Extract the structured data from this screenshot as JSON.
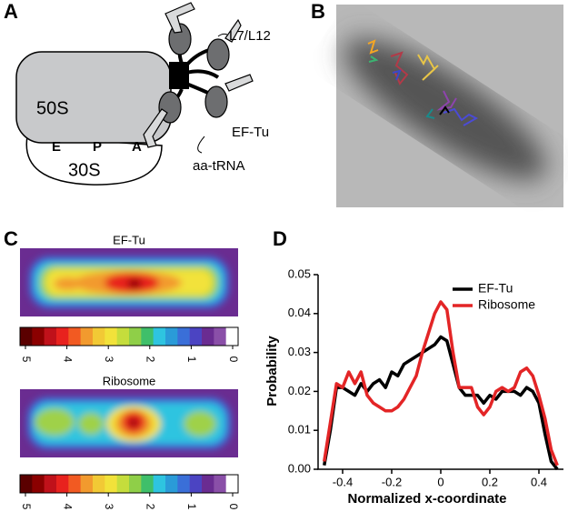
{
  "panels": {
    "a": "A",
    "b": "B",
    "c": "C",
    "d": "D"
  },
  "diagram": {
    "subunit_large": "50S",
    "subunit_small": "30S",
    "sites": [
      "E",
      "P",
      "A"
    ],
    "stalk": "L7/L12",
    "factor": "EF-Tu",
    "trna": "aa-tRNA"
  },
  "heatmaps": [
    {
      "title": "EF-Tu",
      "colorbar_ticks": [
        5,
        4,
        3,
        2,
        1,
        0
      ]
    },
    {
      "title": "Ribosome",
      "colorbar_ticks": [
        5,
        4,
        3,
        2,
        1,
        0
      ]
    }
  ],
  "chart_data": {
    "type": "line",
    "xlabel": "Normalized x-coordinate",
    "ylabel": "Probability",
    "x": [
      -0.475,
      -0.45,
      -0.425,
      -0.4,
      -0.375,
      -0.35,
      -0.325,
      -0.3,
      -0.275,
      -0.25,
      -0.225,
      -0.2,
      -0.175,
      -0.15,
      -0.125,
      -0.1,
      -0.075,
      -0.05,
      -0.025,
      0,
      0.025,
      0.05,
      0.075,
      0.1,
      0.125,
      0.15,
      0.175,
      0.2,
      0.225,
      0.25,
      0.275,
      0.3,
      0.325,
      0.35,
      0.375,
      0.4,
      0.425,
      0.45,
      0.475
    ],
    "series": [
      {
        "name": "EF-Tu",
        "color": "#000000",
        "values": [
          0.001,
          0.01,
          0.021,
          0.021,
          0.02,
          0.019,
          0.022,
          0.02,
          0.022,
          0.023,
          0.021,
          0.025,
          0.024,
          0.027,
          0.028,
          0.029,
          0.03,
          0.031,
          0.032,
          0.034,
          0.033,
          0.027,
          0.021,
          0.019,
          0.019,
          0.019,
          0.017,
          0.019,
          0.018,
          0.02,
          0.02,
          0.02,
          0.019,
          0.021,
          0.02,
          0.017,
          0.009,
          0.002,
          0
        ]
      },
      {
        "name": "Ribosome",
        "color": "#e32526",
        "values": [
          0.002,
          0.012,
          0.022,
          0.021,
          0.025,
          0.022,
          0.025,
          0.019,
          0.017,
          0.016,
          0.015,
          0.015,
          0.016,
          0.018,
          0.021,
          0.024,
          0.03,
          0.035,
          0.04,
          0.043,
          0.041,
          0.03,
          0.021,
          0.021,
          0.021,
          0.016,
          0.014,
          0.016,
          0.02,
          0.021,
          0.02,
          0.021,
          0.025,
          0.026,
          0.024,
          0.019,
          0.013,
          0.005,
          0.001
        ]
      }
    ],
    "xlim": [
      -0.5,
      0.5
    ],
    "xticks": [
      -0.4,
      -0.2,
      0,
      0.2,
      0.4
    ],
    "ylim": [
      0,
      0.05
    ],
    "yticks": [
      {
        "value": 0,
        "label": "0.00"
      },
      0.01,
      0.02,
      0.03,
      0.04,
      0.05
    ],
    "legend": "upper right"
  }
}
